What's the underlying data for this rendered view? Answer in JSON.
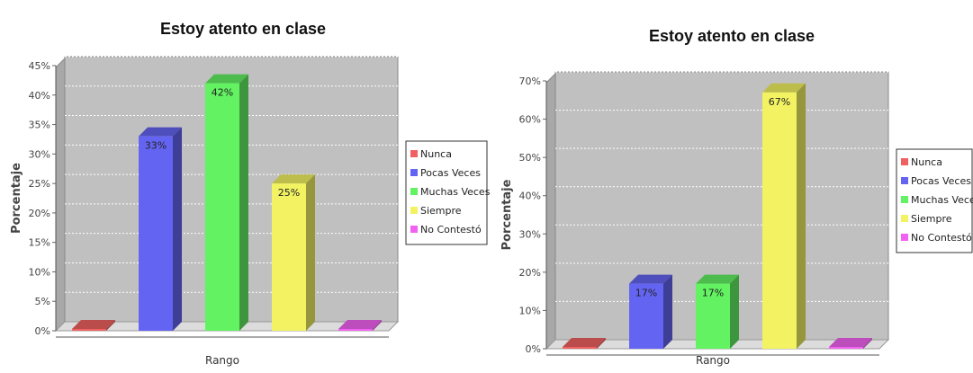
{
  "colors": {
    "Nunca": "#f06262",
    "Pocas Veces": "#6464f2",
    "Muchas Veces": "#62f262",
    "Siempre": "#f2f262",
    "No Contestó": "#f262f2",
    "plot_background": "#c0c0c0"
  },
  "chart_data": [
    {
      "type": "bar",
      "title": "Estoy atento en clase",
      "xlabel": "Rango",
      "ylabel": "Porcentaje",
      "ylim": [
        0,
        45
      ],
      "yticks": [
        0,
        5,
        10,
        15,
        20,
        25,
        30,
        35,
        40,
        45
      ],
      "ytick_labels": [
        "0%",
        "5%",
        "10%",
        "15%",
        "20%",
        "25%",
        "30%",
        "35%",
        "40%",
        "45%"
      ],
      "grid": true,
      "legend_position": "right",
      "series": [
        {
          "name": "Nunca",
          "value": 0,
          "label": ""
        },
        {
          "name": "Pocas Veces",
          "value": 33,
          "label": "33%"
        },
        {
          "name": "Muchas Veces",
          "value": 42,
          "label": "42%"
        },
        {
          "name": "Siempre",
          "value": 25,
          "label": "25%"
        },
        {
          "name": "No Contestó",
          "value": 0,
          "label": ""
        }
      ]
    },
    {
      "type": "bar",
      "title": "Estoy atento en clase",
      "xlabel": "Rango",
      "ylabel": "Porcentaje",
      "ylim": [
        0,
        70
      ],
      "yticks": [
        0,
        10,
        20,
        30,
        40,
        50,
        60,
        70
      ],
      "ytick_labels": [
        "0%",
        "10%",
        "20%",
        "30%",
        "40%",
        "50%",
        "60%",
        "70%"
      ],
      "grid": true,
      "legend_position": "right",
      "series": [
        {
          "name": "Nunca",
          "value": 0,
          "label": ""
        },
        {
          "name": "Pocas Veces",
          "value": 17,
          "label": "17%"
        },
        {
          "name": "Muchas Veces",
          "value": 17,
          "label": "17%"
        },
        {
          "name": "Siempre",
          "value": 67,
          "label": "67%"
        },
        {
          "name": "No Contestó",
          "value": 0,
          "label": ""
        }
      ]
    }
  ]
}
